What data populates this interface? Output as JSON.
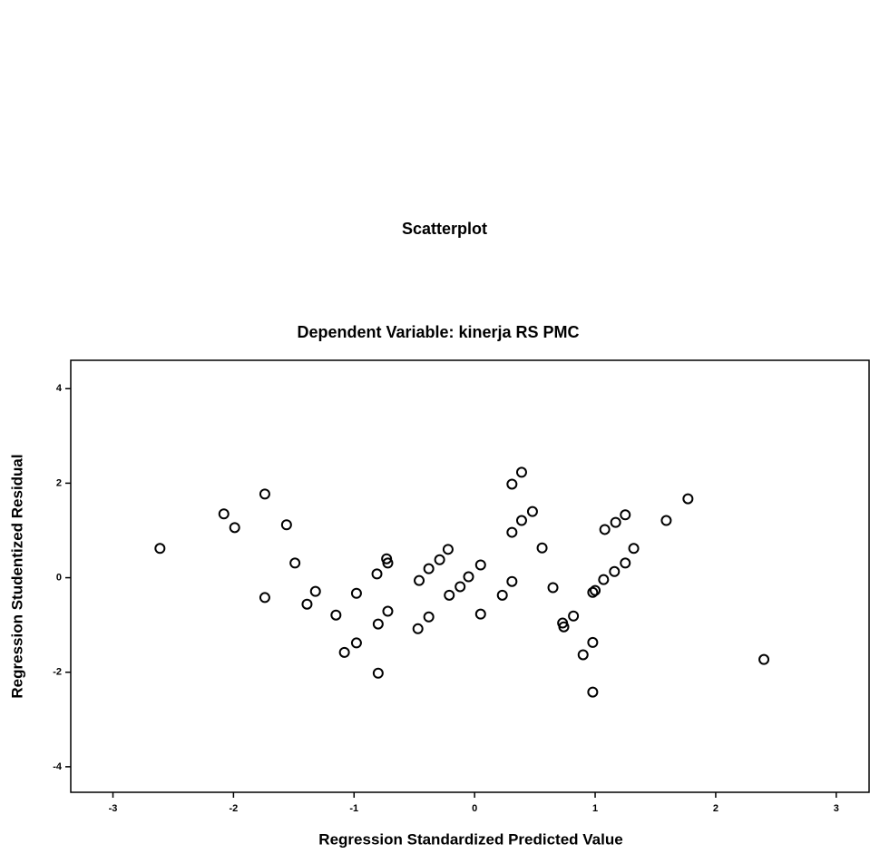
{
  "chart_data": {
    "type": "scatter",
    "title": "Scatterplot",
    "subtitle": "Dependent Variable: kinerja RS PMC",
    "x_label": "Regression Standardized Predicted Value",
    "y_label": "Regression Studentized Residual",
    "color": "#000000",
    "x": [
      -2.61,
      -2.08,
      -1.99,
      -1.74,
      -1.74,
      -1.56,
      -1.49,
      -1.39,
      -1.32,
      -1.15,
      -1.08,
      -0.98,
      -0.98,
      -0.81,
      -0.8,
      -0.8,
      -0.73,
      -0.72,
      -0.72,
      -0.46,
      -0.47,
      -0.38,
      -0.38,
      -0.29,
      -0.22,
      -0.21,
      -0.12,
      -0.05,
      0.05,
      0.05,
      0.23,
      0.31,
      0.31,
      0.31,
      0.39,
      0.39,
      0.48,
      0.56,
      0.65,
      0.73,
      0.74,
      0.82,
      0.9,
      0.98,
      0.98,
      0.98,
      1.0,
      1.07,
      1.08,
      1.16,
      1.17,
      1.25,
      1.25,
      1.32,
      1.59,
      1.77,
      2.4
    ],
    "values": [
      0.62,
      1.35,
      1.06,
      1.77,
      -0.42,
      1.12,
      0.31,
      -0.56,
      -0.29,
      -0.79,
      -1.58,
      -1.38,
      -0.33,
      0.08,
      -0.98,
      -2.02,
      0.4,
      0.31,
      -0.71,
      -0.06,
      -1.08,
      0.19,
      -0.83,
      0.38,
      0.6,
      -0.37,
      -0.19,
      0.02,
      0.27,
      -0.77,
      -0.37,
      1.98,
      0.96,
      -0.08,
      2.23,
      1.21,
      1.4,
      0.63,
      -0.21,
      -0.96,
      -1.04,
      -0.81,
      -1.63,
      -1.37,
      -2.42,
      -0.31,
      -0.27,
      -0.04,
      1.02,
      0.13,
      1.17,
      0.31,
      1.33,
      0.62,
      1.21,
      1.67,
      -1.73
    ],
    "xlim": [
      -3.35,
      3.28
    ],
    "ylim": [
      -4.54,
      4.6
    ],
    "xticks": [
      -3,
      -2,
      -1,
      0,
      1,
      2,
      3
    ],
    "yticks": [
      -4,
      -2,
      0,
      2,
      4
    ]
  }
}
